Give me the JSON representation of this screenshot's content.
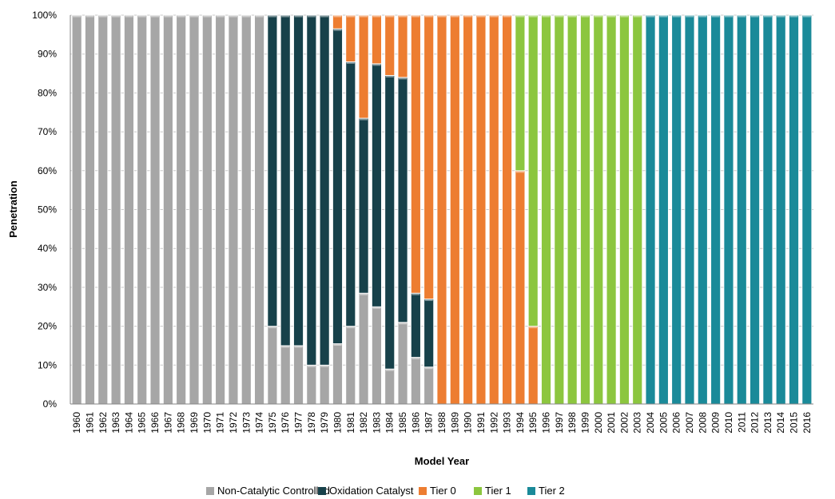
{
  "chart_data": {
    "type": "bar",
    "stacked": "percent",
    "title": "",
    "xlabel": "Model Year",
    "ylabel": "Penetration",
    "ylim": [
      0,
      100
    ],
    "y_ticks": [
      "0%",
      "10%",
      "20%",
      "30%",
      "40%",
      "50%",
      "60%",
      "70%",
      "80%",
      "90%",
      "100%"
    ],
    "grid": true,
    "legend_position": "bottom",
    "categories": [
      "1960",
      "1961",
      "1962",
      "1963",
      "1964",
      "1965",
      "1966",
      "1967",
      "1968",
      "1969",
      "1970",
      "1971",
      "1972",
      "1973",
      "1974",
      "1975",
      "1976",
      "1977",
      "1978",
      "1979",
      "1980",
      "1981",
      "1982",
      "1983",
      "1984",
      "1985",
      "1986",
      "1987",
      "1988",
      "1989",
      "1990",
      "1991",
      "1992",
      "1993",
      "1994",
      "1995",
      "1996",
      "1997",
      "1998",
      "1999",
      "2000",
      "2001",
      "2002",
      "2003",
      "2004",
      "2005",
      "2006",
      "2007",
      "2008",
      "2009",
      "2010",
      "2011",
      "2012",
      "2013",
      "2014",
      "2015",
      "2016"
    ],
    "series": [
      {
        "name": "Non-Catalytic Controlled",
        "color": "#a6a6a6",
        "values": [
          100,
          100,
          100,
          100,
          100,
          100,
          100,
          100,
          100,
          100,
          100,
          100,
          100,
          100,
          100,
          20,
          15,
          15,
          10,
          10,
          15.5,
          20,
          28.5,
          25,
          9,
          21,
          12,
          9.5,
          0,
          0,
          0,
          0,
          0,
          0,
          0,
          0,
          0,
          0,
          0,
          0,
          0,
          0,
          0,
          0,
          0,
          0,
          0,
          0,
          0,
          0,
          0,
          0,
          0,
          0,
          0,
          0,
          0
        ]
      },
      {
        "name": "Oxidation Catalyst",
        "color": "#17414a",
        "values": [
          0,
          0,
          0,
          0,
          0,
          0,
          0,
          0,
          0,
          0,
          0,
          0,
          0,
          0,
          0,
          80,
          85,
          85,
          90,
          90,
          81,
          68,
          45,
          62.5,
          75.5,
          63,
          16.5,
          17.5,
          0,
          0,
          0,
          0,
          0,
          0,
          0,
          0,
          0,
          0,
          0,
          0,
          0,
          0,
          0,
          0,
          0,
          0,
          0,
          0,
          0,
          0,
          0,
          0,
          0,
          0,
          0,
          0,
          0
        ]
      },
      {
        "name": "Tier 0",
        "color": "#ed7d31",
        "values": [
          0,
          0,
          0,
          0,
          0,
          0,
          0,
          0,
          0,
          0,
          0,
          0,
          0,
          0,
          0,
          0,
          0,
          0,
          0,
          0,
          3.5,
          12,
          26.5,
          12.5,
          15.5,
          16,
          71.5,
          73,
          100,
          100,
          100,
          100,
          100,
          100,
          60,
          20,
          0,
          0,
          0,
          0,
          0,
          0,
          0,
          0,
          0,
          0,
          0,
          0,
          0,
          0,
          0,
          0,
          0,
          0,
          0,
          0,
          0
        ]
      },
      {
        "name": "Tier 1",
        "color": "#8cc63f",
        "values": [
          0,
          0,
          0,
          0,
          0,
          0,
          0,
          0,
          0,
          0,
          0,
          0,
          0,
          0,
          0,
          0,
          0,
          0,
          0,
          0,
          0,
          0,
          0,
          0,
          0,
          0,
          0,
          0,
          0,
          0,
          0,
          0,
          0,
          0,
          40,
          80,
          100,
          100,
          100,
          100,
          100,
          100,
          100,
          100,
          0,
          0,
          0,
          0,
          0,
          0,
          0,
          0,
          0,
          0,
          0,
          0,
          0
        ]
      },
      {
        "name": "Tier 2",
        "color": "#1a8a99",
        "values": [
          0,
          0,
          0,
          0,
          0,
          0,
          0,
          0,
          0,
          0,
          0,
          0,
          0,
          0,
          0,
          0,
          0,
          0,
          0,
          0,
          0,
          0,
          0,
          0,
          0,
          0,
          0,
          0,
          0,
          0,
          0,
          0,
          0,
          0,
          0,
          0,
          0,
          0,
          0,
          0,
          0,
          0,
          0,
          0,
          100,
          100,
          100,
          100,
          100,
          100,
          100,
          100,
          100,
          100,
          100,
          100,
          100
        ]
      }
    ]
  }
}
